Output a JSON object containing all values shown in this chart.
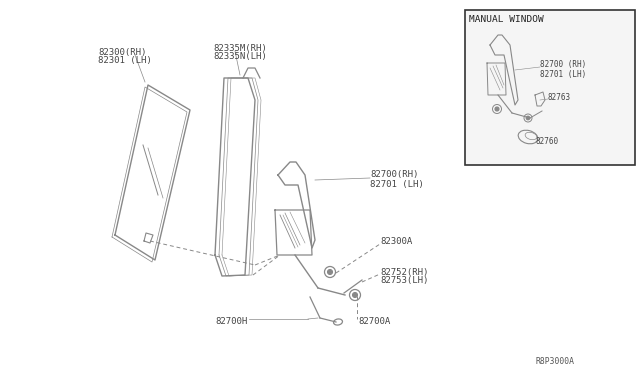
{
  "bg_color": "#ffffff",
  "fig_width": 6.4,
  "fig_height": 3.72,
  "dpi": 100,
  "lc": "#888888",
  "tc": "#444444",
  "labels": {
    "glass1": "82300(RH)",
    "glass2": "82301 (LH)",
    "run1": "82335M(RH)",
    "run2": "82335N(LH)",
    "reg1": "82700(RH)",
    "reg2": "82701 (LH)",
    "bolt": "82300A",
    "handle_rh": "82752(RH)",
    "handle_lh": "82753(LH)",
    "cable": "82700H",
    "nut": "82700A",
    "manual_window": "MANUAL WINDOW",
    "bracket": "82763",
    "handle_inset": "82760",
    "reg_inset1": "82700 (RH)",
    "reg_inset2": "82701 (LH)",
    "ref": "R8P3000A"
  }
}
